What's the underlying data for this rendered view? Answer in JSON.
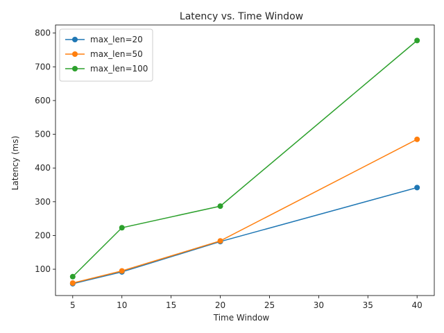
{
  "chart_data": {
    "type": "line",
    "title": "Latency vs. Time Window",
    "xlabel": "Time Window",
    "ylabel": "Latency (ms)",
    "x": [
      5,
      10,
      20,
      40
    ],
    "xlim": [
      3.25,
      41.75
    ],
    "ylim": [
      22,
      824
    ],
    "xticks": [
      5,
      10,
      15,
      20,
      25,
      30,
      35,
      40
    ],
    "yticks": [
      100,
      200,
      300,
      400,
      500,
      600,
      700,
      800
    ],
    "grid": false,
    "legend_position": "upper-left",
    "markers": "circle",
    "series": [
      {
        "name": "max_len=20",
        "color": "#1f77b4",
        "values": [
          57,
          92,
          182,
          342
        ]
      },
      {
        "name": "max_len=50",
        "color": "#ff7f0e",
        "values": [
          59,
          95,
          184,
          485
        ]
      },
      {
        "name": "max_len=100",
        "color": "#2ca02c",
        "values": [
          78,
          223,
          287,
          778
        ]
      }
    ]
  }
}
